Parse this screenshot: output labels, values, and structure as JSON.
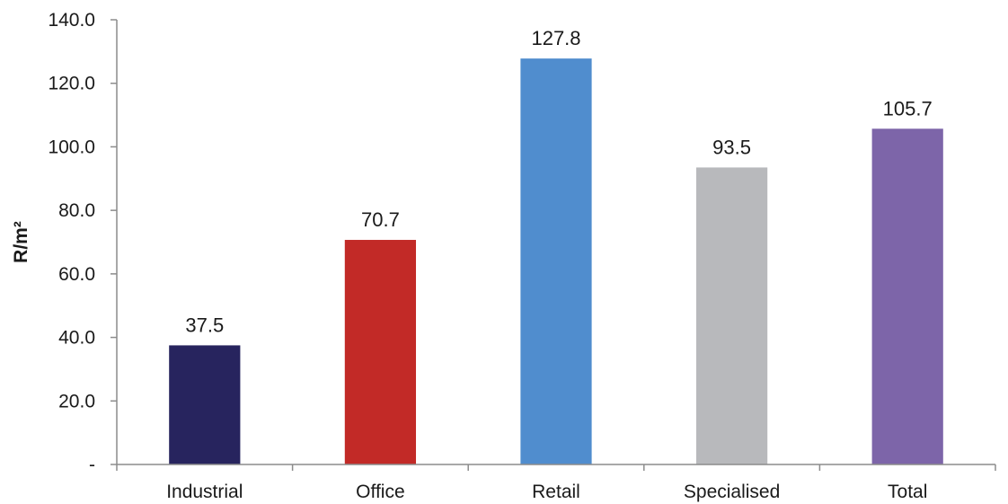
{
  "chart_data": {
    "type": "bar",
    "title": "",
    "xlabel": "",
    "ylabel": "R/m²",
    "ylim": [
      0,
      140
    ],
    "yticks": [
      0,
      20,
      40,
      60,
      80,
      100,
      120,
      140
    ],
    "ytick_labels": [
      "-",
      "20.0",
      "40.0",
      "60.0",
      "80.0",
      "100.0",
      "120.0",
      "140.0"
    ],
    "categories": [
      "Industrial",
      "Office",
      "Retail",
      "Specialised",
      "Total"
    ],
    "values": [
      37.5,
      70.7,
      127.8,
      93.5,
      105.7
    ],
    "data_labels": [
      "37.5",
      "70.7",
      "127.8",
      "93.5",
      "105.7"
    ],
    "colors": [
      "#27245e",
      "#c22a27",
      "#508dce",
      "#b8b9bc",
      "#7d65a9"
    ],
    "grid": false,
    "legend": "none"
  }
}
